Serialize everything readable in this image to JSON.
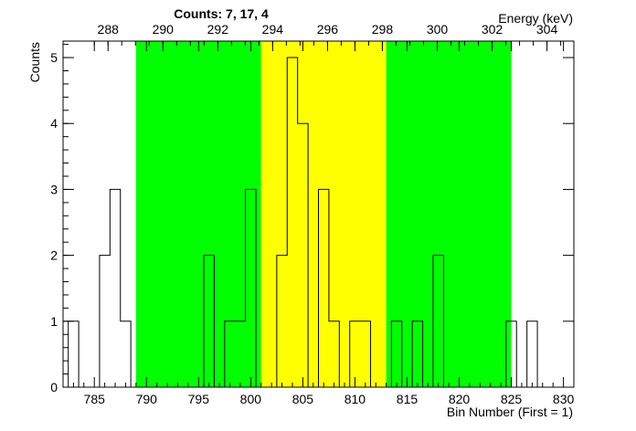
{
  "chart_data": {
    "type": "histogram",
    "title": "Counts:   7,   17,   4",
    "ylabel": "Counts",
    "xlabel_bottom": "Bin Number (First = 1)",
    "xlabel_top": "Energy (keV)",
    "xlim": [
      782,
      831
    ],
    "ylim": [
      0,
      5.25
    ],
    "bottom_ticks": [
      "785",
      "790",
      "795",
      "800",
      "805",
      "810",
      "815",
      "820",
      "825",
      "830"
    ],
    "top_ticks": [
      "288",
      "290",
      "292",
      "294",
      "296",
      "298",
      "300",
      "302",
      "304"
    ],
    "y_ticks": [
      "0",
      "1",
      "2",
      "3",
      "4",
      "5"
    ],
    "bins": [
      783,
      784,
      785,
      786,
      787,
      788,
      789,
      790,
      791,
      792,
      793,
      794,
      795,
      796,
      797,
      798,
      799,
      800,
      801,
      802,
      803,
      804,
      805,
      806,
      807,
      808,
      809,
      810,
      811,
      812,
      813,
      814,
      815,
      816,
      817,
      818,
      819,
      820,
      821,
      822,
      823,
      824,
      825,
      826,
      827,
      828,
      829,
      830
    ],
    "counts": [
      1,
      0,
      0,
      2,
      3,
      1,
      0,
      0,
      0,
      0,
      0,
      0,
      0,
      2,
      0,
      1,
      1,
      3,
      0,
      0,
      2,
      5,
      4,
      0,
      3,
      1,
      0,
      1,
      1,
      0,
      0,
      1,
      0,
      1,
      0,
      2,
      0,
      0,
      0,
      0,
      0,
      0,
      1,
      0,
      1,
      0,
      0,
      0
    ],
    "bands": [
      {
        "label": "background-left",
        "from": 789,
        "to": 801,
        "color": "#00ff00"
      },
      {
        "label": "peak",
        "from": 801,
        "to": 813,
        "color": "#ffff00"
      },
      {
        "label": "background-right",
        "from": 813,
        "to": 825,
        "color": "#00ff00"
      }
    ],
    "energy_axis": {
      "bin_a": 785,
      "energy_a": 287.5,
      "bin_b": 830,
      "energy_b": 304.6
    }
  }
}
